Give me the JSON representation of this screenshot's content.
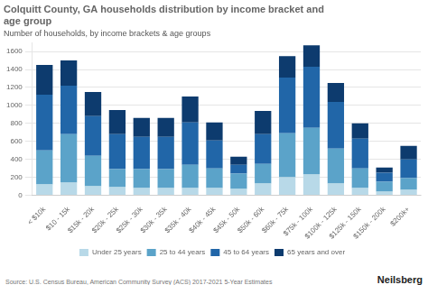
{
  "chart_data": {
    "type": "bar",
    "stacked": true,
    "title": "Colquitt County, GA households distribution by income bracket and\nage group",
    "subtitle": "Number of households, by income brackets & age groups",
    "annotations": [
      "Source: U.S. Census Bureau, American Community Survey (ACS) 2017-2021 5-Year Estimates",
      "Neilsberg"
    ],
    "categories": [
      "< $10k",
      "$10 - 15k",
      "$15k - 20k",
      "$20k - 25k",
      "$25k - 30k",
      "$30k - 35k",
      "$35k - 40k",
      "$40k - 45k",
      "$45k - 50k",
      "$50k - 60k",
      "$60k - 75k",
      "$75k - 100k",
      "$100k - 125k",
      "$125k - 150k",
      "$150k - 200k",
      "$200k+"
    ],
    "series": [
      {
        "name": "Under 25 years",
        "color": "#b8d9e8",
        "values": [
          120,
          140,
          100,
          90,
          80,
          80,
          80,
          80,
          70,
          130,
          200,
          230,
          130,
          80,
          40,
          60
        ]
      },
      {
        "name": "25 to 44 years",
        "color": "#5ba3c9",
        "values": [
          380,
          540,
          340,
          200,
          210,
          210,
          260,
          220,
          170,
          220,
          490,
          520,
          390,
          220,
          110,
          130
        ]
      },
      {
        "name": "45 to 64 years",
        "color": "#2166a8",
        "values": [
          620,
          540,
          440,
          390,
          360,
          360,
          470,
          310,
          100,
          330,
          620,
          680,
          520,
          330,
          100,
          210
        ]
      },
      {
        "name": "65 years and over",
        "color": "#0d3b6e",
        "values": [
          330,
          280,
          270,
          270,
          210,
          210,
          290,
          200,
          90,
          260,
          240,
          240,
          210,
          170,
          60,
          150
        ]
      }
    ],
    "ylim": [
      0,
      1700
    ],
    "yticks": [
      0,
      200,
      400,
      600,
      800,
      1000,
      1200,
      1400,
      1600
    ],
    "grid": true,
    "legend": "bottom"
  }
}
